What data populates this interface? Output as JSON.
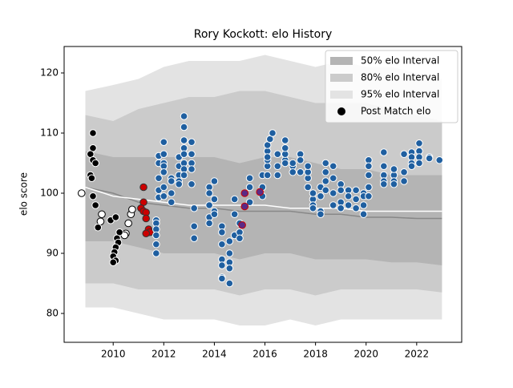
{
  "chart_data": {
    "type": "band_scatter",
    "title": "Rory Kockott: elo History",
    "y_label": "elo score",
    "xlim": [
      2008.06,
      2023.78
    ],
    "ylim": [
      75.2,
      124.4
    ],
    "xticks": [
      2010,
      2012,
      2014,
      2016,
      2018,
      2020,
      2022
    ],
    "yticks": [
      80,
      90,
      100,
      110,
      120
    ],
    "legend": "upper right",
    "x": [
      2008.9,
      2010,
      2011,
      2012,
      2013,
      2014,
      2015,
      2016,
      2017,
      2018,
      2019,
      2020,
      2021,
      2022,
      2023
    ],
    "bands": [
      {
        "name": "95% elo Interval",
        "color": "#e3e3e3",
        "upper": [
          117,
          118,
          119,
          121,
          122,
          122,
          122,
          123,
          122,
          121,
          122,
          121,
          121,
          120,
          119
        ],
        "lower": [
          81,
          81,
          80,
          79,
          79,
          79,
          78,
          78,
          79,
          78,
          79,
          79,
          79,
          79,
          79
        ]
      },
      {
        "name": "80% elo Interval",
        "color": "#cbcbcb",
        "upper": [
          113,
          112,
          114,
          115,
          116,
          116,
          117,
          117,
          116,
          115,
          115,
          115,
          114,
          113,
          112
        ],
        "lower": [
          85,
          85,
          84,
          84,
          84,
          84,
          83,
          84,
          84,
          83,
          84,
          84,
          84,
          84,
          83.5
        ]
      },
      {
        "name": "50% elo Interval",
        "color": "#b4b4b4",
        "upper": [
          107,
          106,
          106,
          106,
          106,
          106,
          105,
          106,
          106,
          105,
          104,
          104,
          103,
          103,
          103
        ],
        "lower": [
          92,
          92,
          91,
          90,
          90,
          90,
          89,
          90,
          90,
          89,
          89,
          89,
          88.5,
          88.5,
          88
        ]
      }
    ],
    "lines": [
      {
        "color": "#888888",
        "values": [
          101,
          100,
          98.5,
          98,
          97.5,
          97.5,
          97,
          97,
          97,
          96.5,
          96.5,
          96,
          96,
          95.8,
          95.8
        ]
      },
      {
        "color": "#ffffff",
        "values": [
          101,
          99.5,
          99,
          98.5,
          98,
          98,
          98,
          98,
          97.5,
          97.5,
          97.5,
          97,
          97,
          97,
          97
        ]
      }
    ],
    "scatter_name": "Post Match elo",
    "scatter_color": "#000000",
    "points": [
      {
        "color": "#ffffff",
        "edge": "#000000",
        "x": [
          2008.75,
          2009.55,
          2009.5,
          2010.6,
          2010.5,
          2010.7,
          2010.75,
          2010.45
        ],
        "y": [
          100,
          96.5,
          95.3,
          95,
          93.3,
          96.5,
          97.3,
          93
        ]
      },
      {
        "color": "#000000",
        "edge": "#ffffff",
        "x": [
          2009.2,
          2009.2,
          2009.1,
          2009.2,
          2009.3,
          2009.1,
          2009.15,
          2009.2,
          2009.3,
          2009.4,
          2009.9,
          2010.1,
          2010.25,
          2010.15,
          2010.2,
          2010.1,
          2010.05,
          2010.0,
          2010.1,
          2010.0
        ],
        "y": [
          110,
          107.5,
          106.5,
          105.5,
          105,
          103,
          102.5,
          99.5,
          98,
          94.3,
          95.5,
          96,
          93.5,
          92.5,
          91.8,
          91,
          90.2,
          89.5,
          88.8,
          88.5
        ]
      },
      {
        "color": "#cc0000",
        "edge": "#333333",
        "x": [
          2011.2,
          2011.2,
          2011.1,
          2011.2,
          2011.3,
          2011.3,
          2011.4,
          2011.45,
          2011.3
        ],
        "y": [
          101,
          98.5,
          97.5,
          97,
          96.8,
          95.8,
          94,
          93.5,
          93.3
        ]
      },
      {
        "color": "#1f5fa0",
        "edge": "#ffffff",
        "x": [
          2011.7,
          2011.7,
          2011.7,
          2011.7,
          2011.7,
          2011.7,
          2011.8,
          2011.8,
          2011.8,
          2011.8,
          2011.8,
          2012.0,
          2012.0,
          2012.0,
          2012.0,
          2012.0,
          2012.0,
          2012.0,
          2012.3,
          2012.3,
          2012.3,
          2012.3,
          2012.6,
          2012.6,
          2012.6,
          2012.6,
          2012.6,
          2012.8,
          2012.8,
          2012.8,
          2012.8,
          2012.8,
          2012.8,
          2012.8,
          2012.8,
          2013.1,
          2013.1,
          2013.1,
          2013.1,
          2013.1,
          2013.2,
          2013.2,
          2013.2,
          2013.8,
          2013.8,
          2013.8,
          2013.8,
          2013.8,
          2014.0,
          2014.0,
          2014.0,
          2014.0,
          2014.3,
          2014.3,
          2014.3,
          2014.3,
          2014.3,
          2014.3,
          2014.3,
          2014.6,
          2014.6,
          2014.6,
          2014.6,
          2014.6,
          2014.8,
          2014.8,
          2014.8,
          2015.0,
          2015.0,
          2015.0,
          2015.4,
          2015.4,
          2015.4,
          2015.9,
          2015.9,
          2015.9,
          2016.1,
          2016.1,
          2016.1,
          2016.1,
          2016.2,
          2016.3,
          2016.1,
          2016.1,
          2016.5,
          2016.5,
          2016.5,
          2016.8,
          2016.8,
          2016.8,
          2016.8,
          2016.8,
          2017.1,
          2017.1,
          2017.1,
          2017.4,
          2017.4,
          2017.4,
          2017.7,
          2017.7,
          2017.7,
          2017.7,
          2017.9,
          2017.9,
          2017.9,
          2017.9,
          2018.2,
          2018.2,
          2018.2,
          2018.2,
          2018.4,
          2018.4,
          2018.4,
          2018.4,
          2018.7,
          2018.7,
          2018.7,
          2018.7,
          2019.0,
          2019.0,
          2019.0,
          2019.0,
          2019.3,
          2019.3,
          2019.3,
          2019.6,
          2019.6,
          2019.6,
          2019.9,
          2019.9,
          2019.9,
          2019.9,
          2020.1,
          2020.1,
          2020.1,
          2020.1,
          2020.1,
          2020.7,
          2020.7,
          2020.7,
          2020.7,
          2020.7,
          2021.1,
          2021.1,
          2021.1,
          2021.1,
          2021.5,
          2021.5,
          2021.5,
          2021.8,
          2021.8,
          2021.8,
          2021.8,
          2022.1,
          2022.1,
          2022.1,
          2022.1,
          2022.5,
          2022.5,
          2022.9
        ],
        "y": [
          95.5,
          95,
          94,
          93,
          91.5,
          90,
          106.2,
          105,
          102.5,
          100.5,
          99.3,
          108.5,
          106.5,
          105,
          104.5,
          103.5,
          101,
          99.5,
          102.5,
          102,
          100,
          98.5,
          106,
          104.5,
          103,
          102,
          101.5,
          112.8,
          111,
          108.8,
          107.5,
          106.5,
          105,
          104,
          103,
          108.5,
          106.5,
          105,
          104,
          101.5,
          97.5,
          94.5,
          92.5,
          101,
          100,
          98,
          96,
          95,
          102,
          99,
          97,
          96.5,
          94.5,
          93.5,
          91.5,
          89,
          88,
          86,
          85.8,
          92,
          90,
          88.5,
          87.5,
          85,
          99,
          96.5,
          93,
          95,
          93.5,
          92.5,
          102.5,
          101,
          98.5,
          99.5,
          101,
          103,
          104.5,
          105.5,
          107,
          108,
          109,
          110,
          106,
          103,
          106.5,
          104.5,
          103,
          105.5,
          106.5,
          107.5,
          108.8,
          105,
          104.5,
          103.5,
          105,
          106.5,
          105.5,
          103.5,
          102.5,
          101,
          103.5,
          104.5,
          99,
          98,
          97.5,
          100,
          101,
          99.5,
          97,
          96.5,
          105,
          103.5,
          102,
          100.5,
          104.5,
          102.5,
          100,
          98,
          101.5,
          100.5,
          98.5,
          97.5,
          100.5,
          99.5,
          98,
          100.5,
          99,
          97.5,
          100,
          99.5,
          98,
          96.5,
          105.5,
          104.5,
          103,
          101,
          99.5,
          106.8,
          104.5,
          103,
          102,
          101.5,
          103,
          102,
          101.5,
          104,
          106.5,
          103.5,
          102,
          106.8,
          106,
          105,
          104.5,
          108.3,
          107,
          106,
          105,
          106,
          105.8,
          105.5
        ]
      },
      {
        "color": "#5b2a86",
        "edge": "#cc0000",
        "x": [
          2015.2,
          2015.2,
          2015.1,
          2015.8
        ],
        "y": [
          100,
          97.8,
          94.7,
          100.2
        ]
      }
    ]
  }
}
